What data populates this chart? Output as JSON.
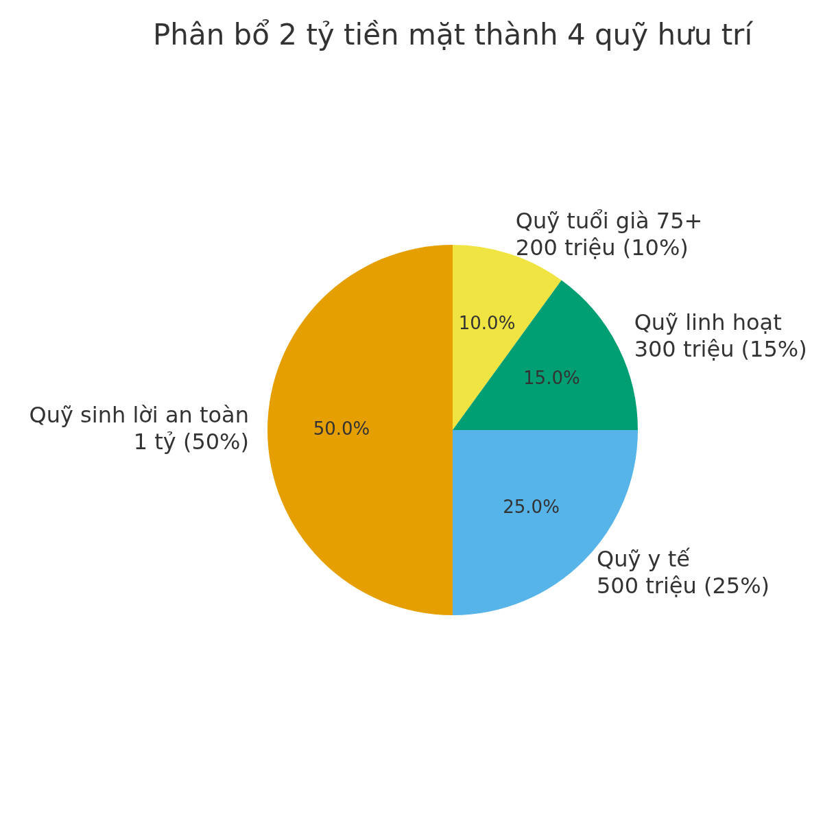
{
  "chart_data": {
    "type": "pie",
    "title": "Phân bổ 2 tỷ tiền mặt thành 4 quỹ hưu trí",
    "categories": [
      "Quỹ tuổi già 75+\n200 triệu (10%)",
      "Quỹ linh hoạt\n300 triệu (15%)",
      "Quỹ y tế\n500 triệu (25%)",
      "Quỹ sinh lời an toàn\n1 tỷ (50%)"
    ],
    "values": [
      10,
      15,
      25,
      50
    ],
    "colors": [
      "#f0e442",
      "#009e73",
      "#56b4e9",
      "#e69f00"
    ],
    "value_labels": [
      "10.0%",
      "15.0%",
      "25.0%",
      "50.0%"
    ],
    "legend": false
  }
}
